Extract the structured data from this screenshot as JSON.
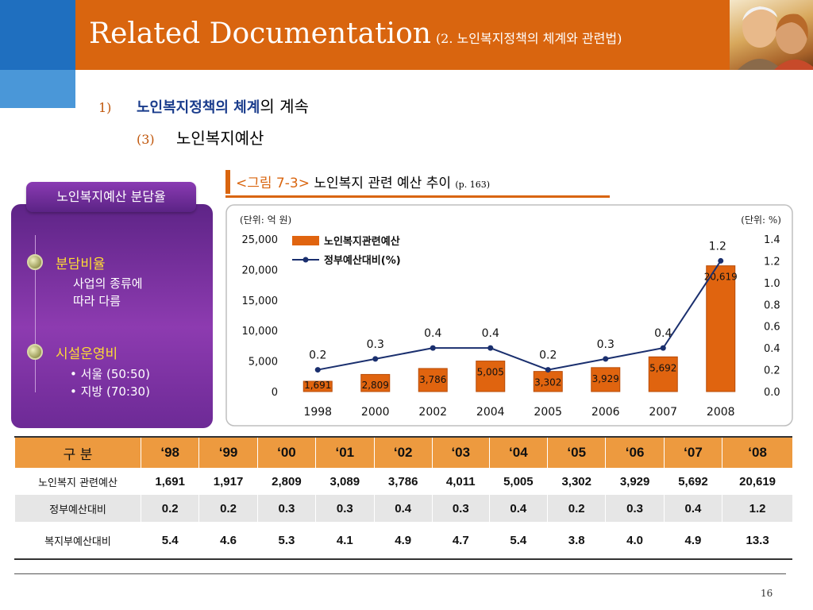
{
  "header": {
    "title": "Related Documentation",
    "subtitle": "(2. 노인복지정책의 체계와 관련법)"
  },
  "outline": {
    "item1_num": "1)",
    "item1_highlight": "노인복지정책의 체계",
    "item1_rest": "의 계속",
    "item2_num": "(3)",
    "item2_text": "노인복지예산"
  },
  "panel": {
    "tab_label": "노인복지예산 분담율",
    "section1_title": "분담비율",
    "section1_lines": [
      "사업의 종류에",
      "따라 다름"
    ],
    "section2_title": "시설운영비",
    "section2_lines": [
      "• 서울 (50:50)",
      "• 지방 (70:30)"
    ]
  },
  "figure": {
    "label": "<그림 7-3>",
    "title": "노인복지 관련 예산 추이",
    "page_ref": "(p. 163)"
  },
  "colors": {
    "accent_orange": "#d9650f",
    "header_blue": "#1f6fbf",
    "panel_purple": "#7a30a3",
    "bar_fill": "#e0640f",
    "line_navy": "#1a2f6e"
  },
  "chart_data": {
    "type": "bar",
    "unit_left": "(단위: 억 원)",
    "unit_right": "(단위: %)",
    "categories": [
      "1998",
      "2000",
      "2002",
      "2004",
      "2005",
      "2006",
      "2007",
      "2008"
    ],
    "series": [
      {
        "name": "노인복지관련예산",
        "type": "bar",
        "axis": "left",
        "values": [
          1691,
          2809,
          3786,
          5005,
          3302,
          3929,
          5692,
          20619
        ],
        "labels": [
          "1,691",
          "2,809",
          "3,786",
          "5,005",
          "3,302",
          "3,929",
          "5,692",
          "20,619"
        ]
      },
      {
        "name": "정부예산대비(%)",
        "type": "line",
        "axis": "right",
        "values": [
          0.2,
          0.3,
          0.4,
          0.4,
          0.2,
          0.3,
          0.4,
          1.2
        ],
        "labels": [
          "0.2",
          "0.3",
          "0.4",
          "0.4",
          "0.2",
          "0.3",
          "0.4",
          "1.2"
        ]
      }
    ],
    "y_left": {
      "range": [
        0,
        25000
      ],
      "ticks": [
        "0",
        "5,000",
        "10,000",
        "15,000",
        "20,000",
        "25,000"
      ]
    },
    "y_right": {
      "range": [
        0,
        1.4
      ],
      "ticks": [
        "0.0",
        "0.2",
        "0.4",
        "0.6",
        "0.8",
        "1.0",
        "1.2",
        "1.4"
      ]
    },
    "legend_position": "top-left",
    "grid": false
  },
  "table": {
    "header_label": "구    분",
    "years": [
      "‘98",
      "‘99",
      "‘00",
      "‘01",
      "‘02",
      "‘03",
      "‘04",
      "‘05",
      "‘06",
      "‘07",
      "‘08"
    ],
    "rows": [
      {
        "label": "노인복지 관련예산",
        "values": [
          "1,691",
          "1,917",
          "2,809",
          "3,089",
          "3,786",
          "4,011",
          "5,005",
          "3,302",
          "3,929",
          "5,692",
          "20,619"
        ]
      },
      {
        "label": "정부예산대비",
        "values": [
          "0.2",
          "0.2",
          "0.3",
          "0.3",
          "0.4",
          "0.3",
          "0.4",
          "0.2",
          "0.3",
          "0.4",
          "1.2"
        ]
      },
      {
        "label": "복지부예산대비",
        "values": [
          "5.4",
          "4.6",
          "5.3",
          "4.1",
          "4.9",
          "4.7",
          "5.4",
          "3.8",
          "4.0",
          "4.9",
          "13.3"
        ]
      }
    ]
  },
  "page_number": "16"
}
